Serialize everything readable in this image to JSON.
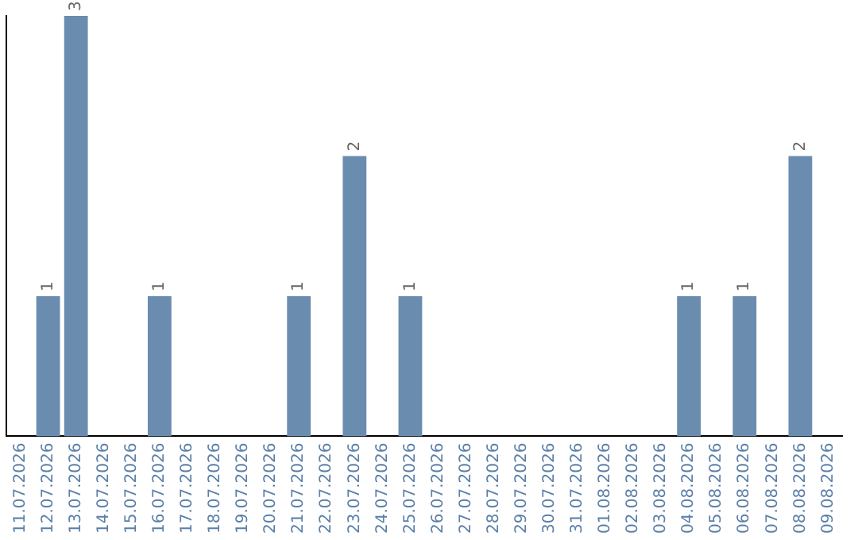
{
  "chart_data": {
    "type": "bar",
    "categories": [
      "11.07.2026",
      "12.07.2026",
      "13.07.2026",
      "14.07.2026",
      "15.07.2026",
      "16.07.2026",
      "17.07.2026",
      "18.07.2026",
      "19.07.2026",
      "20.07.2026",
      "21.07.2026",
      "22.07.2026",
      "23.07.2026",
      "24.07.2026",
      "25.07.2026",
      "26.07.2026",
      "27.07.2026",
      "28.07.2026",
      "29.07.2026",
      "30.07.2026",
      "31.07.2026",
      "01.08.2026",
      "02.08.2026",
      "03.08.2026",
      "04.08.2026",
      "05.08.2026",
      "06.08.2026",
      "07.08.2026",
      "08.08.2026",
      "09.08.2026"
    ],
    "values": [
      0,
      1,
      3,
      0,
      0,
      1,
      0,
      0,
      0,
      0,
      1,
      0,
      2,
      0,
      1,
      0,
      0,
      0,
      0,
      0,
      0,
      0,
      0,
      0,
      1,
      0,
      1,
      0,
      2,
      0
    ],
    "value_labels": [
      null,
      "1",
      "3",
      null,
      null,
      "1",
      null,
      null,
      null,
      null,
      "1",
      null,
      "2",
      null,
      "1",
      null,
      null,
      null,
      null,
      null,
      null,
      null,
      null,
      null,
      "1",
      null,
      "1",
      null,
      "2",
      null
    ],
    "color": "#6a8caf",
    "grid": false,
    "legend": false,
    "tick_labels": "x"
  }
}
